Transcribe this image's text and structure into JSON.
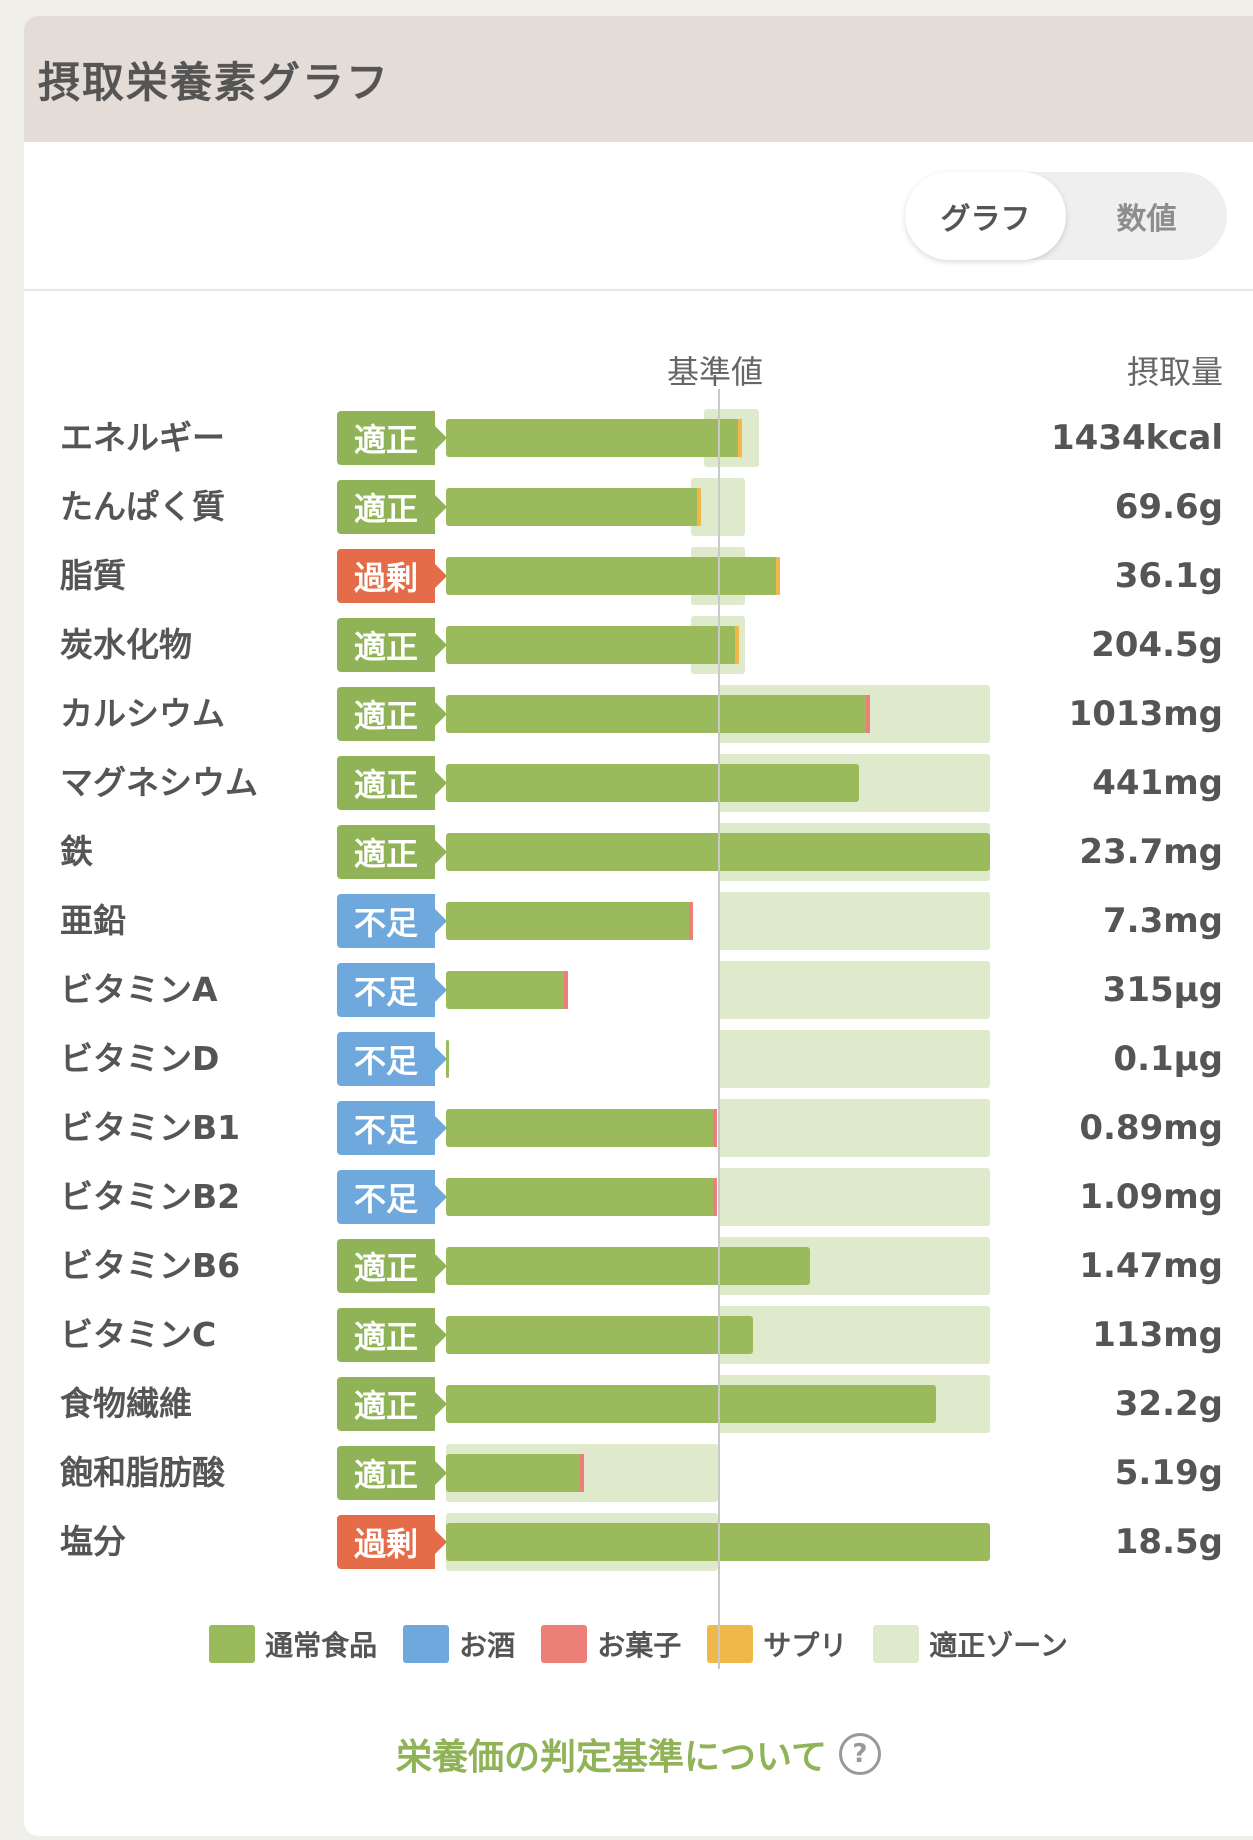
{
  "header": {
    "title": "摂取栄養素グラフ"
  },
  "toggle": {
    "graph_label": "グラフ",
    "number_label": "数値",
    "selected": "グラフ"
  },
  "columns": {
    "base_label": "基準値",
    "intake_label": "摂取量"
  },
  "colors": {
    "normal_food": "#9bba5c",
    "alcohol": "#6fa8dc",
    "snacks": "#ec8078",
    "supplements": "#f0b84a",
    "proper_zone": "#dfeacc",
    "status_ok": "#8fb356",
    "status_low": "#6fa8dc",
    "status_high": "#e56c48"
  },
  "chart_data": {
    "type": "bar",
    "scale_note": "bar length relative to reference (reference = 1.0)",
    "rows": [
      {
        "name": "エネルギー",
        "status": "適正",
        "status_type": "ok",
        "value": "1434kcal",
        "ratio": 1.08,
        "zone": [
          0.95,
          1.15
        ],
        "tip": "supplements"
      },
      {
        "name": "たんぱく質",
        "status": "適正",
        "status_type": "ok",
        "value": "69.6g",
        "ratio": 0.93,
        "zone": [
          0.9,
          1.1
        ],
        "tip": "supplements"
      },
      {
        "name": "脂質",
        "status": "過剰",
        "status_type": "high",
        "value": "36.1g",
        "ratio": 1.22,
        "zone": [
          0.9,
          1.1
        ],
        "tip": "supplements"
      },
      {
        "name": "炭水化物",
        "status": "適正",
        "status_type": "ok",
        "value": "204.5g",
        "ratio": 1.07,
        "zone": [
          0.9,
          1.1
        ],
        "tip": "supplements"
      },
      {
        "name": "カルシウム",
        "status": "適正",
        "status_type": "ok",
        "value": "1013mg",
        "ratio": 1.55,
        "zone": [
          1.0,
          2.0
        ],
        "tip": "snacks"
      },
      {
        "name": "マグネシウム",
        "status": "適正",
        "status_type": "ok",
        "value": "441mg",
        "ratio": 1.52,
        "zone": [
          1.0,
          2.0
        ],
        "tip": null
      },
      {
        "name": "鉄",
        "status": "適正",
        "status_type": "ok",
        "value": "23.7mg",
        "ratio": 2.0,
        "zone": [
          1.0,
          2.0
        ],
        "tip": null
      },
      {
        "name": "亜鉛",
        "status": "不足",
        "status_type": "low",
        "value": "7.3mg",
        "ratio": 0.9,
        "zone": [
          1.0,
          2.0
        ],
        "tip": "snacks"
      },
      {
        "name": "ビタミンA",
        "status": "不足",
        "status_type": "low",
        "value": "315µg",
        "ratio": 0.44,
        "zone": [
          1.0,
          2.0
        ],
        "tip": "snacks"
      },
      {
        "name": "ビタミンD",
        "status": "不足",
        "status_type": "low",
        "value": "0.1µg",
        "ratio": 0.01,
        "zone": [
          1.0,
          2.0
        ],
        "tip": null
      },
      {
        "name": "ビタミンB1",
        "status": "不足",
        "status_type": "low",
        "value": "0.89mg",
        "ratio": 0.99,
        "zone": [
          1.0,
          2.0
        ],
        "tip": "snacks"
      },
      {
        "name": "ビタミンB2",
        "status": "不足",
        "status_type": "low",
        "value": "1.09mg",
        "ratio": 0.99,
        "zone": [
          1.0,
          2.0
        ],
        "tip": "snacks"
      },
      {
        "name": "ビタミンB6",
        "status": "適正",
        "status_type": "ok",
        "value": "1.47mg",
        "ratio": 1.34,
        "zone": [
          1.0,
          2.0
        ],
        "tip": null
      },
      {
        "name": "ビタミンC",
        "status": "適正",
        "status_type": "ok",
        "value": "113mg",
        "ratio": 1.13,
        "zone": [
          1.0,
          2.0
        ],
        "tip": null
      },
      {
        "name": "食物繊維",
        "status": "適正",
        "status_type": "ok",
        "value": "32.2g",
        "ratio": 1.8,
        "zone": [
          1.0,
          2.0
        ],
        "tip": null
      },
      {
        "name": "飽和脂肪酸",
        "status": "適正",
        "status_type": "ok",
        "value": "5.19g",
        "ratio": 0.5,
        "zone": [
          0.0,
          1.0
        ],
        "tip": "snacks"
      },
      {
        "name": "塩分",
        "status": "過剰",
        "status_type": "high",
        "value": "18.5g",
        "ratio": 2.0,
        "zone": [
          0.0,
          1.0
        ],
        "tip": null
      }
    ]
  },
  "legend": [
    {
      "label": "通常食品",
      "color": "#9bba5c"
    },
    {
      "label": "お酒",
      "color": "#6fa8dc"
    },
    {
      "label": "お菓子",
      "color": "#ec8078"
    },
    {
      "label": "サプリ",
      "color": "#f0b84a"
    },
    {
      "label": "適正ゾーン",
      "color": "#dfeacc"
    }
  ],
  "footer": {
    "criteria_link": "栄養価の判定基準について",
    "help_icon": "?"
  }
}
